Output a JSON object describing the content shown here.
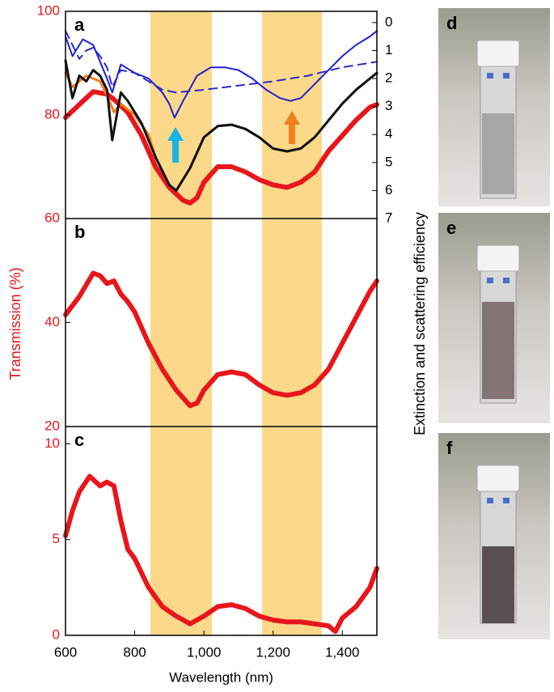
{
  "chart_data": [
    {
      "type": "line",
      "label": "a",
      "xlim": [
        600,
        1500
      ],
      "ylim": [
        60,
        100
      ],
      "yticks": [
        60,
        80,
        100
      ],
      "y2lim": [
        7,
        -0.4
      ],
      "y2ticks": [
        0,
        1,
        2,
        3,
        4,
        5,
        6,
        7
      ],
      "y2label": "Extinction and scattering efficiency",
      "highlight_ranges": [
        [
          845,
          1023
        ],
        [
          1168,
          1341
        ]
      ],
      "highlight_color": "#fcd98a",
      "series": [
        {
          "color": "#e8161b",
          "line_width": 6,
          "x": [
            600,
            640,
            680,
            720,
            740,
            780,
            820,
            860,
            900,
            940,
            960,
            980,
            1000,
            1040,
            1080,
            1120,
            1160,
            1200,
            1240,
            1280,
            1320,
            1360,
            1400,
            1440,
            1480,
            1500
          ],
          "values": [
            79.5,
            82,
            84.5,
            84,
            83,
            80.5,
            76,
            70,
            66,
            63.5,
            63,
            64,
            67,
            70,
            70,
            69,
            67.5,
            66.5,
            66,
            67,
            69,
            73,
            76,
            79,
            81.5,
            82
          ]
        },
        {
          "color": "#f07f1e",
          "line_width": 3,
          "axis": "y2",
          "x": [
            600,
            620,
            640,
            660,
            700,
            720,
            740,
            760,
            800,
            840,
            860,
            900,
            920,
            960,
            1000,
            1040,
            1080,
            1120,
            1160,
            1200,
            1240,
            1280,
            1320,
            1360,
            1400,
            1440,
            1480,
            1500
          ],
          "values": [
            1.8,
            2.3,
            2.1,
            1.9,
            2.1,
            2.6,
            3.2,
            2.9,
            3.3,
            4.0,
            4.8,
            5.8,
            6.0,
            5.2,
            4.1,
            3.7,
            3.65,
            3.8,
            4.1,
            4.5,
            4.6,
            4.5,
            4.1,
            3.5,
            2.9,
            2.4,
            2.0,
            1.8
          ]
        },
        {
          "color": "#111111",
          "line_width": 3,
          "axis": "y2",
          "x": [
            600,
            620,
            640,
            660,
            680,
            700,
            720,
            735,
            760,
            780,
            820,
            860,
            900,
            920,
            960,
            1000,
            1040,
            1080,
            1120,
            1160,
            1200,
            1240,
            1280,
            1320,
            1360,
            1400,
            1440,
            1480,
            1500
          ],
          "values": [
            1.36,
            2.7,
            1.9,
            2.1,
            1.7,
            1.9,
            2.4,
            4.2,
            2.5,
            2.8,
            3.6,
            4.8,
            5.8,
            6.0,
            5.2,
            4.1,
            3.7,
            3.65,
            3.8,
            4.1,
            4.5,
            4.6,
            4.5,
            4.1,
            3.5,
            2.9,
            2.4,
            2.0,
            1.8
          ]
        },
        {
          "color": "#1f1fd0",
          "line_width": 2,
          "axis": "y2",
          "x": [
            600,
            620,
            650,
            680,
            720,
            735,
            760,
            800,
            840,
            880,
            900,
            915,
            940,
            980,
            1020,
            1060,
            1100,
            1140,
            1180,
            1220,
            1250,
            1280,
            1320,
            1360,
            1400,
            1440,
            1480,
            1500
          ],
          "values": [
            0.5,
            1.2,
            0.6,
            0.8,
            2.0,
            2.5,
            1.5,
            1.8,
            2.0,
            2.5,
            2.9,
            3.4,
            2.8,
            1.9,
            1.6,
            1.6,
            1.7,
            2.0,
            2.4,
            2.7,
            2.8,
            2.7,
            2.2,
            1.7,
            1.2,
            0.8,
            0.5,
            0.3
          ]
        },
        {
          "color": "#2a2ad0",
          "line_width": 2,
          "linestyle": "dashed",
          "axis": "y2",
          "x": [
            600,
            620,
            640,
            660,
            680,
            700,
            720,
            735,
            760,
            800,
            840,
            880,
            920,
            960,
            1000,
            1100,
            1200,
            1300,
            1400,
            1500
          ],
          "values": [
            0.3,
            0.8,
            1.3,
            1.0,
            0.9,
            1.2,
            1.6,
            2.3,
            1.7,
            1.8,
            2.1,
            2.4,
            2.5,
            2.45,
            2.4,
            2.25,
            2.1,
            1.9,
            1.6,
            1.4
          ]
        }
      ]
    },
    {
      "type": "line",
      "label": "b",
      "xlim": [
        600,
        1500
      ],
      "ylim": [
        20,
        60
      ],
      "yticks": [
        20,
        40
      ],
      "ylabel": "Transmission (%)",
      "series": [
        {
          "color": "#e8161b",
          "line_width": 6,
          "x": [
            600,
            640,
            680,
            700,
            720,
            740,
            760,
            780,
            800,
            840,
            880,
            920,
            960,
            980,
            1000,
            1040,
            1080,
            1120,
            1160,
            1200,
            1240,
            1280,
            1320,
            1360,
            1400,
            1440,
            1480,
            1500
          ],
          "values": [
            41.5,
            45,
            49.5,
            49,
            47.5,
            48,
            45.5,
            44,
            42,
            36,
            31,
            27,
            24,
            24.5,
            27,
            30,
            30.5,
            30,
            28,
            26.5,
            26,
            26.5,
            28,
            31,
            36,
            41,
            46,
            48
          ]
        }
      ]
    },
    {
      "type": "line",
      "label": "c",
      "xlim": [
        600,
        1500
      ],
      "ylim": [
        0,
        10.9
      ],
      "yticks": [
        0,
        5,
        10
      ],
      "xlabel": "Wavelength (nm)",
      "xticks": [
        600,
        800,
        {
          "value": 1000,
          "label": "1,000"
        },
        {
          "value": 1200,
          "label": "1,200"
        },
        {
          "value": 1400,
          "label": "1,400"
        }
      ],
      "series": [
        {
          "color": "#e8161b",
          "line_width": 6,
          "x": [
            600,
            620,
            640,
            670,
            700,
            720,
            740,
            760,
            780,
            800,
            840,
            880,
            920,
            960,
            1000,
            1040,
            1080,
            1120,
            1160,
            1200,
            1240,
            1280,
            1320,
            1360,
            1380,
            1400,
            1440,
            1480,
            1500
          ],
          "values": [
            5.2,
            6.5,
            7.5,
            8.3,
            7.8,
            8.0,
            7.8,
            6,
            4.5,
            4.0,
            2.5,
            1.5,
            1.0,
            0.6,
            1.0,
            1.5,
            1.6,
            1.4,
            1.0,
            0.8,
            0.7,
            0.7,
            0.6,
            0.5,
            0.2,
            0.9,
            1.5,
            2.5,
            3.5
          ]
        }
      ]
    }
  ],
  "photos": [
    {
      "label": "d"
    },
    {
      "label": "e"
    },
    {
      "label": "f"
    }
  ]
}
